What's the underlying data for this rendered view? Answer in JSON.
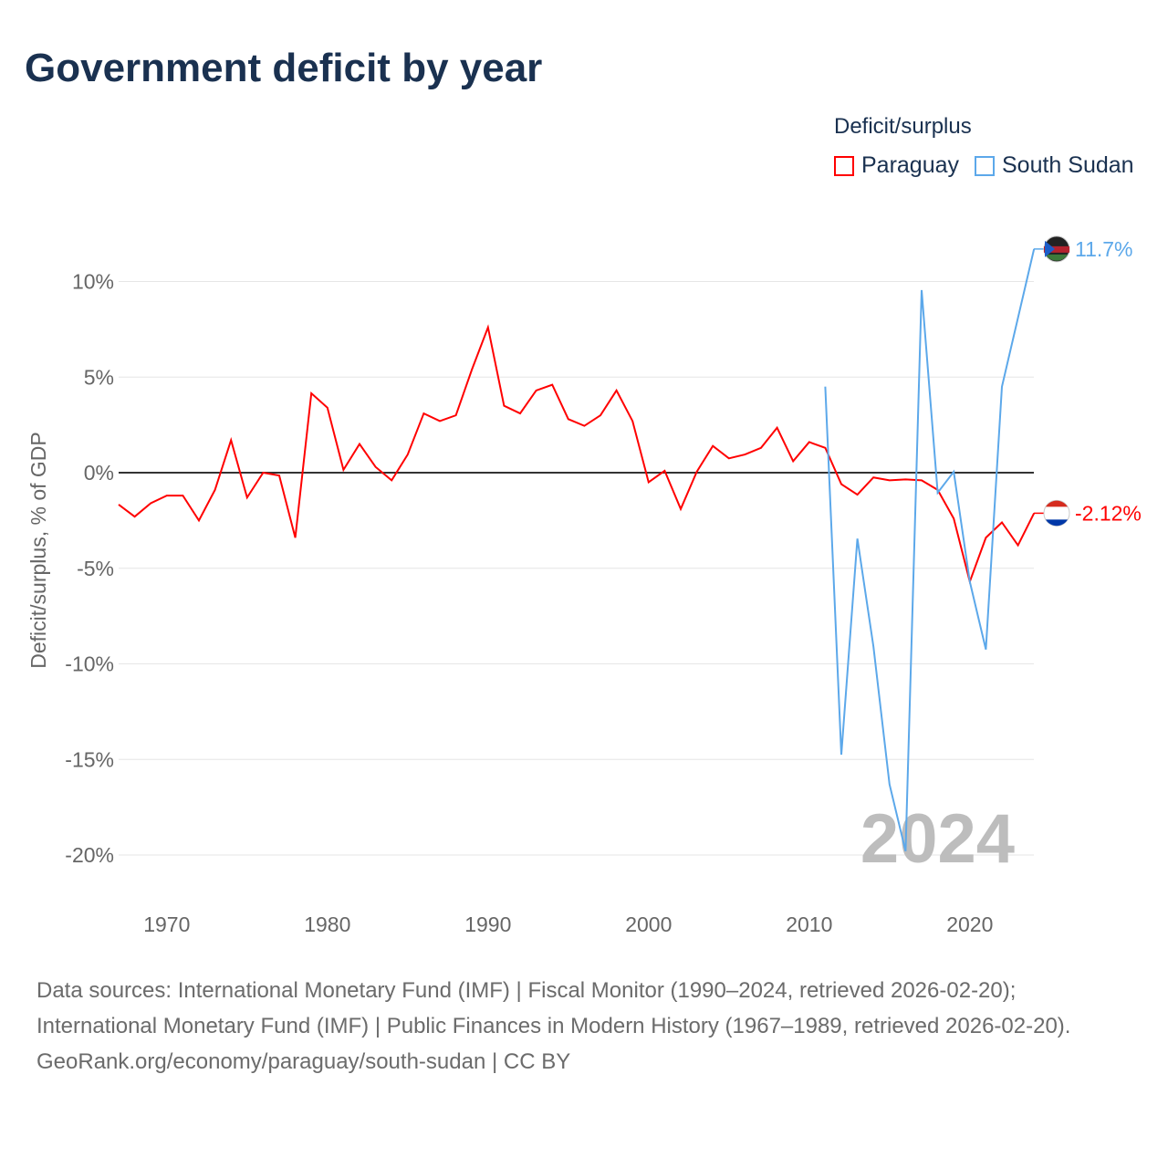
{
  "title": "Government deficit by year",
  "legend": {
    "title": "Deficit/surplus",
    "items": [
      "Paraguay",
      "South Sudan"
    ]
  },
  "watermark_year": "2024",
  "sources": {
    "line1": "Data sources: International Monetary Fund (IMF) | Fiscal Monitor (1990–2024, retrieved 2026-02-20); International Monetary Fund (IMF) | Public Finances in Modern History (1967–1989, retrieved 2026-02-20).",
    "line2": "GeoRank.org/economy/paraguay/south-sudan | CC BY"
  },
  "chart_data": {
    "type": "line",
    "title": "Government deficit by year",
    "xlabel": "",
    "ylabel": "Deficit/surplus, % of GDP",
    "xlim": [
      1967,
      2024
    ],
    "ylim": [
      -22,
      12
    ],
    "xticks": [
      1970,
      1980,
      1990,
      2000,
      2010,
      2020
    ],
    "yticks": [
      {
        "v": 10,
        "l": "10%"
      },
      {
        "v": 5,
        "l": "5%"
      },
      {
        "v": 0,
        "l": "0%"
      },
      {
        "v": -5,
        "l": "-5%"
      },
      {
        "v": -10,
        "l": "-10%"
      },
      {
        "v": -15,
        "l": "-15%"
      },
      {
        "v": -20,
        "l": "-20%"
      }
    ],
    "series": [
      {
        "name": "Paraguay",
        "color": "#ff0000",
        "end_label": "-2.12%",
        "start": 1967,
        "values": [
          -1.67,
          -2.3,
          -1.6,
          -1.2,
          -1.2,
          -2.5,
          -0.9,
          1.7,
          -1.3,
          0,
          -0.15,
          -3.4,
          4.15,
          3.4,
          0.15,
          1.5,
          0.3,
          -0.4,
          0.95,
          3.1,
          2.7,
          3.0,
          5.4,
          7.6,
          3.5,
          3.1,
          4.3,
          4.6,
          2.8,
          2.45,
          3.0,
          4.3,
          2.7,
          -0.5,
          0.1,
          -1.9,
          0.05,
          1.4,
          0.75,
          0.95,
          1.3,
          2.35,
          0.6,
          1.6,
          1.3,
          -0.6,
          -1.15,
          -0.25,
          -0.4,
          -0.35,
          -0.4,
          -0.9,
          -2.4,
          -5.7,
          -3.4,
          -2.6,
          -3.8,
          -2.12
        ]
      },
      {
        "name": "South Sudan",
        "color": "#5ca8ea",
        "end_label": "11.7%",
        "start": 2011,
        "values": [
          4.5,
          -14.75,
          -3.45,
          -9.1,
          -16.3,
          -19.8,
          9.55,
          -1.05,
          0.05,
          -5.7,
          -9.25,
          4.5,
          8.1,
          11.7
        ]
      }
    ]
  }
}
